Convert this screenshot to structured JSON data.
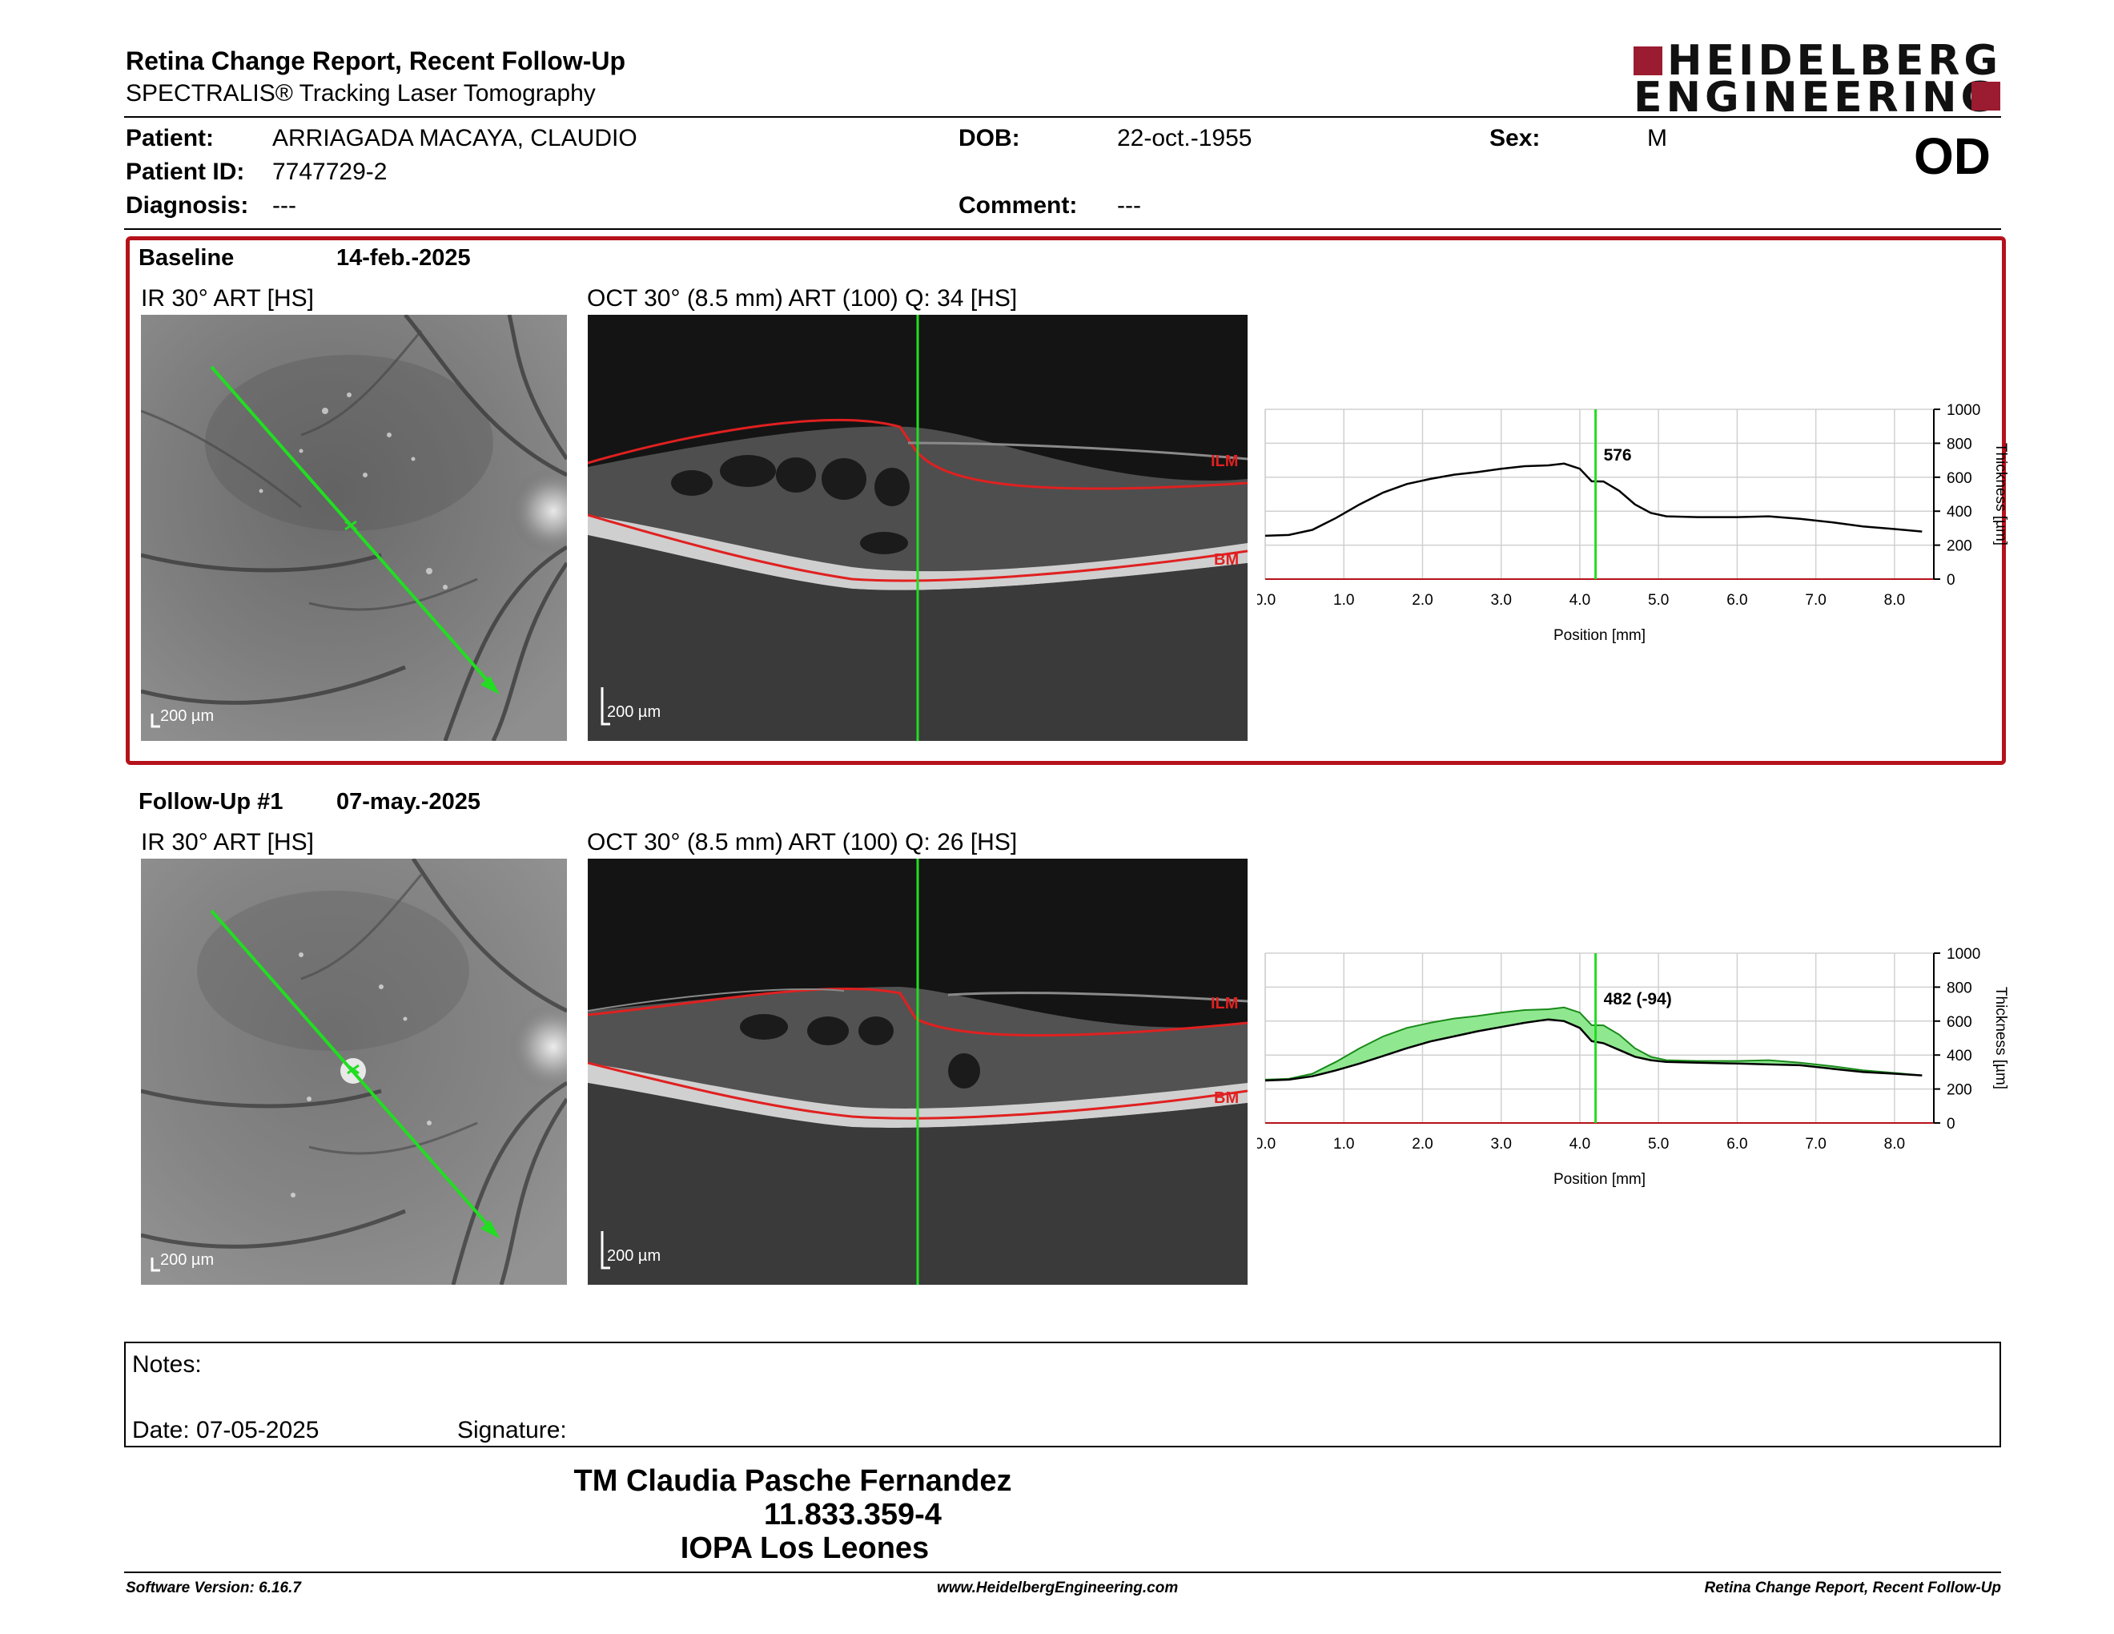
{
  "header": {
    "title": "Retina Change Report, Recent Follow-Up",
    "subtitle": "SPECTRALIS® Tracking Laser Tomography",
    "logo_line1": "HEIDELBERG",
    "logo_line2": "ENGINEERING",
    "eye": "OD"
  },
  "patient": {
    "patient_label": "Patient:",
    "patient_value": "ARRIAGADA MACAYA, CLAUDIO",
    "id_label": "Patient ID:",
    "id_value": "7747729-2",
    "diagnosis_label": "Diagnosis:",
    "diagnosis_value": "---",
    "dob_label": "DOB:",
    "dob_value": "22-oct.-1955",
    "comment_label": "Comment:",
    "comment_value": "---",
    "sex_label": "Sex:",
    "sex_value": "M"
  },
  "baseline": {
    "label": "Baseline",
    "date": "14-feb.-2025",
    "ir_caption": "IR 30° ART [HS]",
    "oct_caption": "OCT 30° (8.5 mm) ART (100) Q: 34 [HS]",
    "ir_scale": "200 µm",
    "oct_scale": "200 µm",
    "ilm": "ILM",
    "bm": "BM"
  },
  "followup": {
    "label": "Follow-Up #1",
    "date": "07-may.-2025",
    "ir_caption": "IR 30° ART [HS]",
    "oct_caption": "OCT 30° (8.5 mm) ART (100) Q: 26 [HS]",
    "ir_scale": "200 µm",
    "oct_scale": "200 µm",
    "ilm": "ILM",
    "bm": "BM"
  },
  "chart_data": [
    {
      "type": "line",
      "xlabel": "Position [mm]",
      "ylabel": "Thickness [µm]",
      "xlim": [
        0,
        8.5
      ],
      "ylim": [
        0,
        1000
      ],
      "xticks": [
        "0.0",
        "1.0",
        "2.0",
        "3.0",
        "4.0",
        "5.0",
        "6.0",
        "7.0",
        "8.0"
      ],
      "yticks": [
        "0",
        "200",
        "400",
        "600",
        "800",
        "1000"
      ],
      "marker_x": 4.2,
      "marker_label": "576",
      "series": [
        {
          "x": [
            0,
            0.3,
            0.6,
            0.9,
            1.2,
            1.5,
            1.8,
            2.1,
            2.4,
            2.7,
            3.0,
            3.3,
            3.6,
            3.8,
            4.0,
            4.15,
            4.3,
            4.5,
            4.7,
            4.9,
            5.1,
            5.5,
            6.0,
            6.4,
            6.8,
            7.2,
            7.6,
            8.0,
            8.35
          ],
          "y": [
            255,
            260,
            290,
            360,
            440,
            510,
            560,
            590,
            615,
            630,
            650,
            665,
            670,
            680,
            650,
            576,
            575,
            520,
            440,
            390,
            370,
            365,
            365,
            370,
            355,
            335,
            310,
            295,
            280
          ]
        }
      ]
    },
    {
      "type": "area",
      "xlabel": "Position [mm]",
      "ylabel": "Thickness [µm]",
      "xlim": [
        0,
        8.5
      ],
      "ylim": [
        0,
        1000
      ],
      "xticks": [
        "0.0",
        "1.0",
        "2.0",
        "3.0",
        "4.0",
        "5.0",
        "6.0",
        "7.0",
        "8.0"
      ],
      "yticks": [
        "0",
        "200",
        "400",
        "600",
        "800",
        "1000"
      ],
      "marker_x": 4.2,
      "marker_label": "482 (-94)",
      "series": [
        {
          "x": [
            0,
            0.3,
            0.6,
            0.9,
            1.2,
            1.5,
            1.8,
            2.1,
            2.4,
            2.7,
            3.0,
            3.3,
            3.6,
            3.8,
            4.0,
            4.15,
            4.3,
            4.5,
            4.7,
            4.9,
            5.1,
            5.5,
            6.0,
            6.4,
            6.8,
            7.2,
            7.6,
            8.0,
            8.35
          ],
          "y": [
            255,
            260,
            290,
            360,
            440,
            510,
            560,
            590,
            615,
            630,
            650,
            665,
            670,
            680,
            650,
            576,
            575,
            520,
            440,
            390,
            370,
            365,
            365,
            370,
            355,
            335,
            310,
            295,
            280
          ]
        },
        {
          "x": [
            0,
            0.3,
            0.6,
            0.9,
            1.2,
            1.5,
            1.8,
            2.1,
            2.4,
            2.7,
            3.0,
            3.3,
            3.6,
            3.8,
            4.0,
            4.15,
            4.3,
            4.5,
            4.7,
            4.9,
            5.1,
            5.5,
            6.0,
            6.4,
            6.8,
            7.2,
            7.6,
            8.0,
            8.35
          ],
          "y": [
            250,
            255,
            275,
            310,
            350,
            395,
            440,
            480,
            510,
            540,
            565,
            590,
            610,
            600,
            560,
            482,
            470,
            430,
            390,
            370,
            360,
            355,
            350,
            345,
            340,
            320,
            300,
            290,
            280
          ]
        }
      ]
    }
  ],
  "notes": {
    "label": "Notes:",
    "date_text": "Date: 07-05-2025",
    "signature_label": "Signature:"
  },
  "operator": {
    "name": "TM Claudia Pasche Fernandez",
    "id": "11.833.359-4",
    "clinic": "IOPA Los Leones"
  },
  "footer": {
    "software": "Software Version: 6.16.7",
    "url": "www.HeidelbergEngineering.com",
    "report": "Retina Change Report, Recent Follow-Up"
  },
  "colors": {
    "brand": "#9b1b30",
    "scan_line": "#22dd22",
    "layer": "#e02020",
    "diff_fill": "#8fe88f"
  }
}
